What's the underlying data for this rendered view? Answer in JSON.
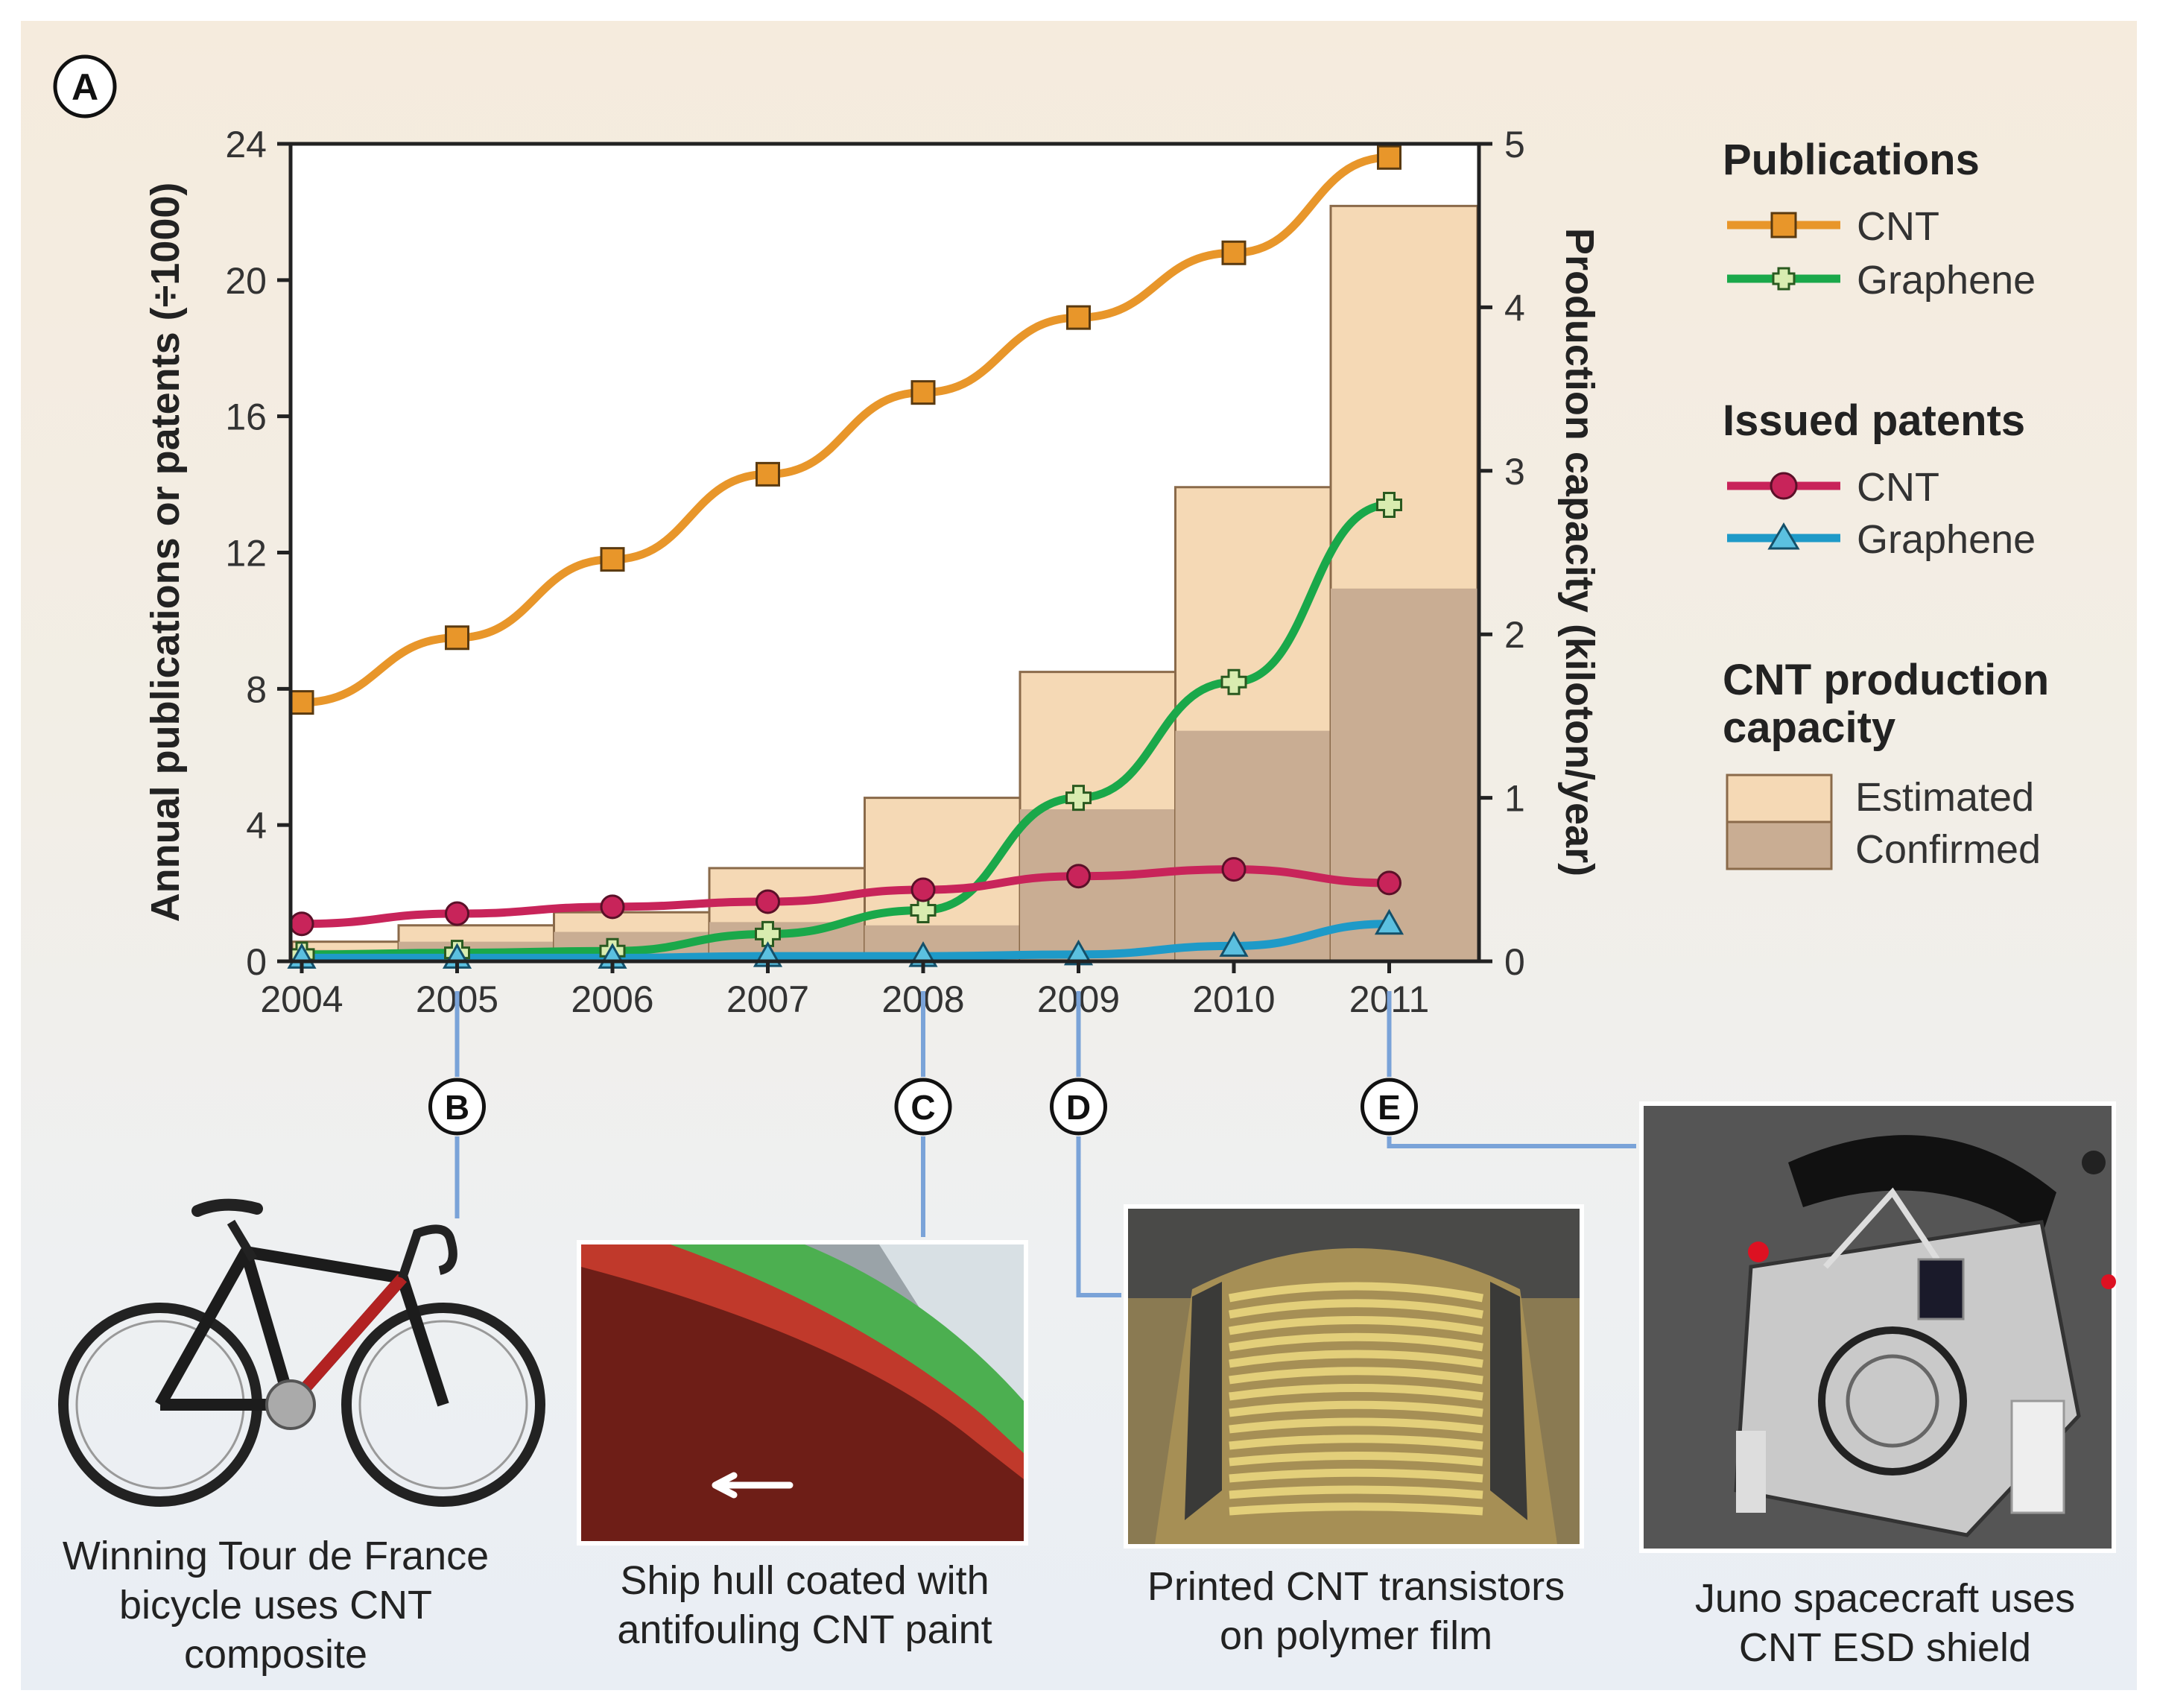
{
  "panel_letter": "A",
  "chart_data": {
    "type": "bar+line",
    "years": [
      2004,
      2005,
      2006,
      2007,
      2008,
      2009,
      2010,
      2011
    ],
    "x_tick_labels": [
      "2004",
      "2005",
      "2006",
      "2007",
      "2008",
      "2009",
      "2010",
      "2011"
    ],
    "left_axis": {
      "label": "Annual publications or patents (÷1000)",
      "ylim": [
        0,
        24
      ],
      "ticks": [
        "0",
        "4",
        "8",
        "12",
        "16",
        "20",
        "24"
      ],
      "tick_values": [
        0,
        4,
        8,
        12,
        16,
        20,
        24
      ]
    },
    "right_axis": {
      "label": "Production capacity (kiloton/year)",
      "ylim": [
        0,
        5
      ],
      "ticks": [
        "0",
        "1",
        "2",
        "3",
        "4",
        "5"
      ],
      "tick_values": [
        0,
        1,
        2,
        3,
        4,
        5
      ]
    },
    "lines": [
      {
        "group": "Publications",
        "name": "CNT",
        "color": "#e8962a",
        "marker": "square",
        "values": [
          7.6,
          9.5,
          11.8,
          14.3,
          16.7,
          18.9,
          20.8,
          23.6
        ]
      },
      {
        "group": "Publications",
        "name": "Graphene",
        "color": "#1aa84a",
        "marker": "plus",
        "values": [
          0.2,
          0.25,
          0.3,
          0.8,
          1.5,
          4.8,
          8.2,
          13.4
        ]
      },
      {
        "group": "Issued patents",
        "name": "CNT",
        "color": "#c8245a",
        "marker": "circle",
        "values": [
          1.1,
          1.4,
          1.6,
          1.75,
          2.1,
          2.5,
          2.7,
          2.3
        ]
      },
      {
        "group": "Issued patents",
        "name": "Graphene",
        "color": "#1e9ac8",
        "marker": "triangle",
        "values": [
          0.1,
          0.1,
          0.1,
          0.15,
          0.15,
          0.2,
          0.45,
          1.1
        ]
      }
    ],
    "bars": {
      "group": "CNT production capacity",
      "estimated": [
        0.12,
        0.22,
        0.3,
        0.57,
        1.0,
        1.77,
        2.9,
        4.62
      ],
      "confirmed": [
        0.07,
        0.12,
        0.18,
        0.24,
        0.22,
        0.93,
        1.41,
        2.28
      ],
      "estimated_color": "#f5d9b5",
      "confirmed_color": "#c9ad93"
    },
    "legend": {
      "publications_title": "Publications",
      "patents_title": "Issued patents",
      "capacity_title": "CNT production capacity",
      "cnt_label": "CNT",
      "graphene_label": "Graphene",
      "estimated_label": "Estimated",
      "confirmed_label": "Confirmed"
    },
    "callouts": [
      {
        "letter": "B",
        "year": 2005,
        "caption": "Winning Tour de France\nbicycle uses CNT\ncomposite"
      },
      {
        "letter": "C",
        "year": 2008,
        "caption": "Ship hull coated with\nantifouling CNT paint"
      },
      {
        "letter": "D",
        "year": 2009,
        "caption": "Printed CNT transistors\non polymer film"
      },
      {
        "letter": "E",
        "year": 2011,
        "caption": "Juno spacecraft uses\nCNT ESD shield"
      }
    ]
  },
  "photos": [
    {
      "subject": "bicycle",
      "icon": "bicycle-photo"
    },
    {
      "subject": "ship hull",
      "icon": "ship-hull-photo"
    },
    {
      "subject": "transistor film",
      "icon": "transistor-film-photo"
    },
    {
      "subject": "spacecraft",
      "icon": "spacecraft-photo"
    }
  ]
}
